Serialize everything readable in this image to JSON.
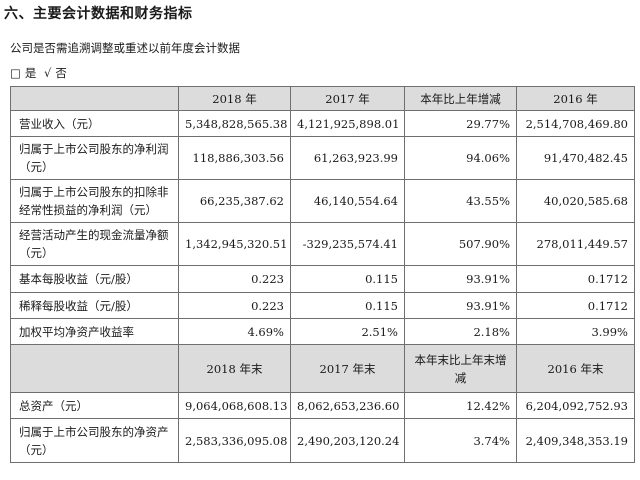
{
  "heading": "六、主要会计数据和财务指标",
  "intro": "公司是否需追溯调整或重述以前年度会计数据",
  "choice": {
    "yes_box": "□",
    "yes_label": "是",
    "no_mark": "√",
    "no_label": "否"
  },
  "header1": [
    "",
    "2018 年",
    "2017 年",
    "本年比上年增减",
    "2016 年"
  ],
  "rows1": [
    {
      "label": "营业收入（元）",
      "values": [
        "5,348,828,565.38",
        "4,121,925,898.01",
        "29.77%",
        "2,514,708,469.80"
      ]
    },
    {
      "label": "归属于上市公司股东的净利润（元）",
      "values": [
        "118,886,303.56",
        "61,263,923.99",
        "94.06%",
        "91,470,482.45"
      ]
    },
    {
      "label": "归属于上市公司股东的扣除非经常性损益的净利润（元）",
      "values": [
        "66,235,387.62",
        "46,140,554.64",
        "43.55%",
        "40,020,585.68"
      ]
    },
    {
      "label": "经营活动产生的现金流量净额（元）",
      "values": [
        "1,342,945,320.51",
        "-329,235,574.41",
        "507.90%",
        "278,011,449.57"
      ]
    },
    {
      "label": "基本每股收益（元/股）",
      "values": [
        "0.223",
        "0.115",
        "93.91%",
        "0.1712"
      ]
    },
    {
      "label": "稀释每股收益（元/股）",
      "values": [
        "0.223",
        "0.115",
        "93.91%",
        "0.1712"
      ]
    },
    {
      "label": "加权平均净资产收益率",
      "values": [
        "4.69%",
        "2.51%",
        "2.18%",
        "3.99%"
      ]
    }
  ],
  "header2": [
    "",
    "2018 年末",
    "2017 年末",
    "本年末比上年末增减",
    "2016 年末"
  ],
  "rows2": [
    {
      "label": "总资产（元）",
      "values": [
        "9,064,068,608.13",
        "8,062,653,236.60",
        "12.42%",
        "6,204,092,752.93"
      ]
    },
    {
      "label": "归属于上市公司股东的净资产（元）",
      "values": [
        "2,583,336,095.08",
        "2,490,203,120.24",
        "3.74%",
        "2,409,348,353.19"
      ]
    }
  ]
}
